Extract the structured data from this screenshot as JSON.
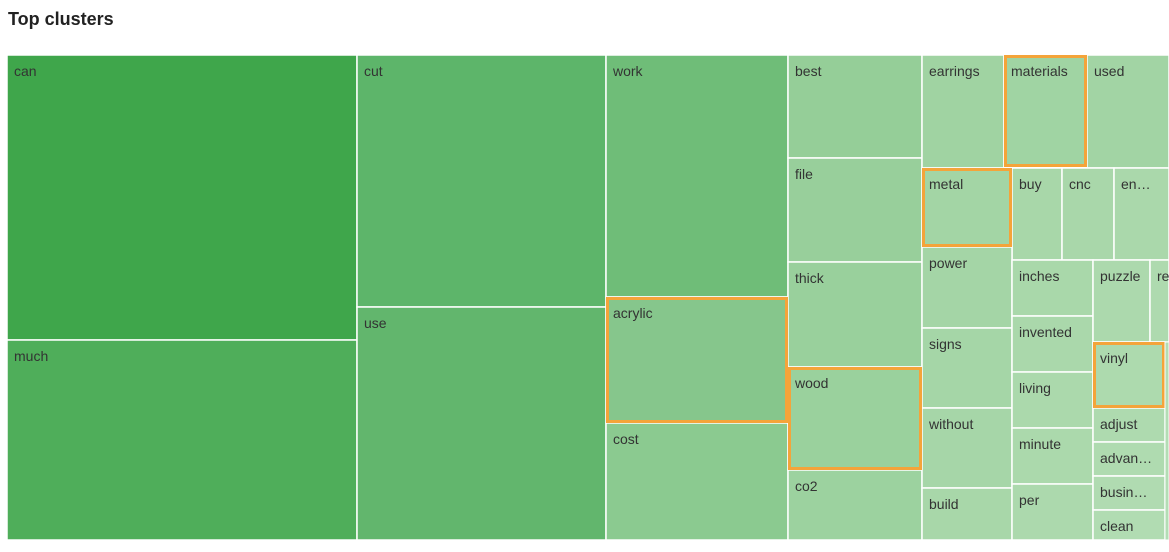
{
  "title": "Top clusters",
  "tiles": [
    "can",
    "much",
    "cut",
    "use",
    "work",
    "acrylic",
    "cost",
    "best",
    "file",
    "thick",
    "wood",
    "co2",
    "earrings",
    "materials",
    "used",
    "metal",
    "buy",
    "cnc",
    "en…",
    "power",
    "signs",
    "without",
    "build",
    "inches",
    "invented",
    "living",
    "minute",
    "per",
    "puzzle",
    "re",
    "vinyl",
    "adjust",
    "advan…",
    "busin…",
    "clean"
  ]
}
